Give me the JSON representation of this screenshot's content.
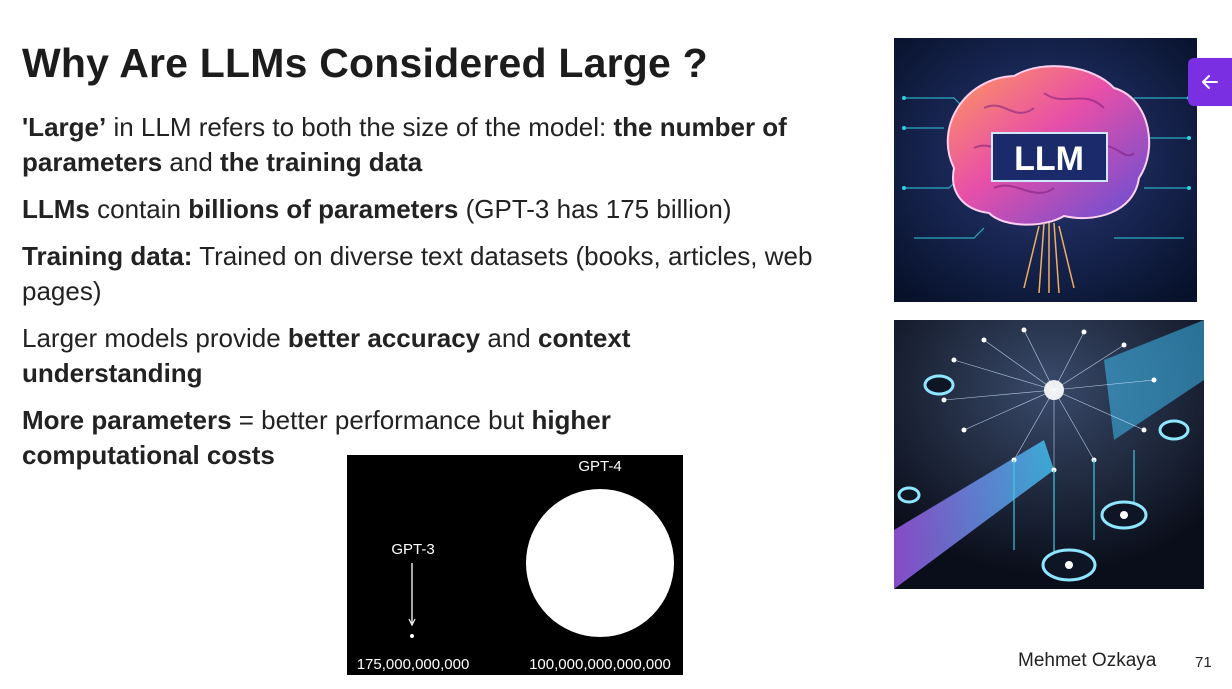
{
  "slide": {
    "title": "Why Are LLMs Considered Large ?",
    "bullets": [
      [
        {
          "t": "'Large’",
          "b": true
        },
        {
          "t": " in LLM refers to both the size of the model: ",
          "b": false
        },
        {
          "t": "the number of parameters",
          "b": true
        },
        {
          "t": " and ",
          "b": false
        },
        {
          "t": "the training data",
          "b": true
        }
      ],
      [
        {
          "t": "LLMs",
          "b": true
        },
        {
          "t": " contain ",
          "b": false
        },
        {
          "t": "billions of parameters",
          "b": true
        },
        {
          "t": " (GPT-3 has 175 billion)",
          "b": false
        }
      ],
      [
        {
          "t": "Training data:",
          "b": true
        },
        {
          "t": " Trained on diverse text datasets (books, articles, web pages)",
          "b": false
        }
      ],
      [
        {
          "t": "Larger models provide ",
          "b": false
        },
        {
          "t": "better accuracy",
          "b": true
        },
        {
          "t": " and ",
          "b": false
        },
        {
          "t": "context understanding",
          "b": true
        }
      ],
      [
        {
          "t": "More parameters",
          "b": true
        },
        {
          "t": " = better performance but ",
          "b": false
        },
        {
          "t": "higher computational costs",
          "b": true
        }
      ]
    ],
    "author": "Mehmet Ozkaya",
    "page_number": "71",
    "brain_image_text": "LLM"
  },
  "chart_data": {
    "type": "scatter",
    "series": [
      {
        "name": "GPT-3",
        "value_label": "175,000,000,000",
        "value": 175000000000
      },
      {
        "name": "GPT-4",
        "value_label": "100,000,000,000,000",
        "value": 100000000000000
      }
    ]
  },
  "controls": {
    "back_icon": "arrow-left-icon",
    "accent_color": "#7b2fe3"
  }
}
